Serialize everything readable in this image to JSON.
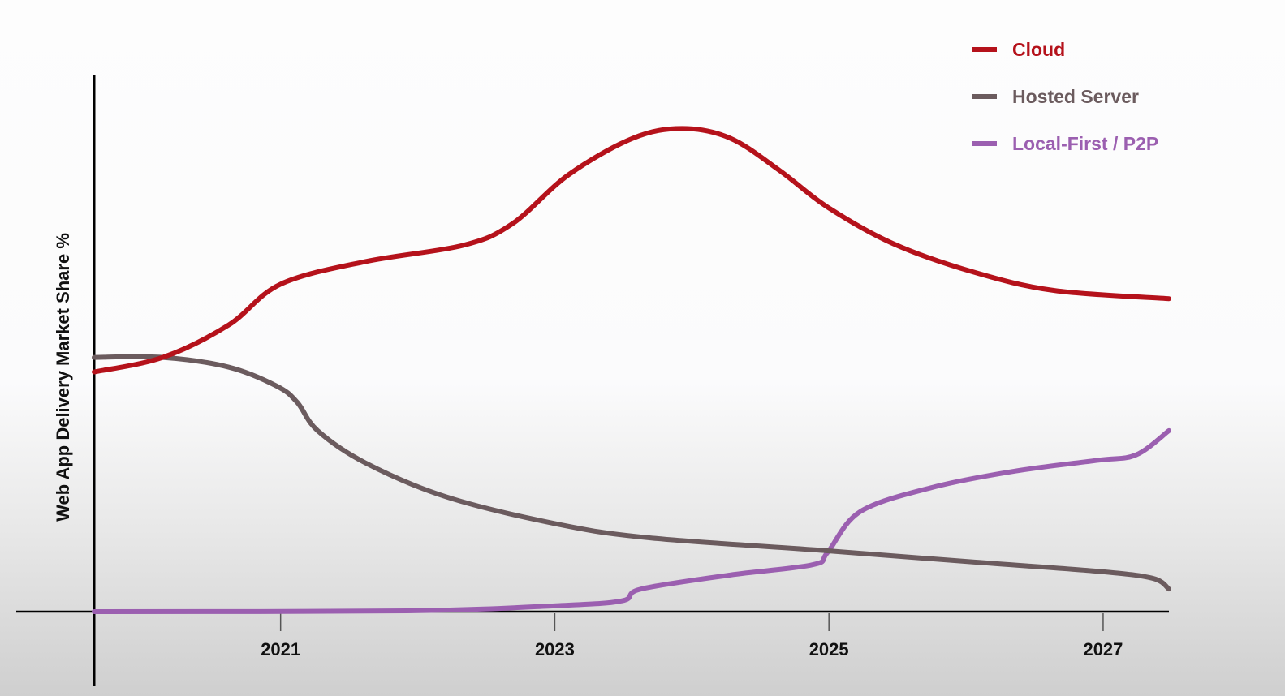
{
  "chart_data": {
    "type": "line",
    "title": "",
    "xlabel": "",
    "ylabel": "Web App Delivery Market Share %",
    "xlim": [
      2019.64,
      2027.48
    ],
    "ylim": [
      0,
      100
    ],
    "xticks": [
      "2021",
      "2023",
      "2025",
      "2027"
    ],
    "xtick_values": [
      2021,
      2023,
      2025,
      2027
    ],
    "grid": false,
    "legend_position": "top-right",
    "series": [
      {
        "name": "Cloud",
        "color": "#b5121b",
        "x": [
          2019.64,
          2020.14,
          2020.62,
          2021.0,
          2021.62,
          2022.33,
          2022.69,
          2023.1,
          2023.57,
          2023.93,
          2024.28,
          2024.64,
          2024.99,
          2025.47,
          2026.06,
          2026.65,
          2027.48
        ],
        "y": [
          44.5,
          47.2,
          53.2,
          60.8,
          65,
          68,
          72,
          81.1,
          87.9,
          89.7,
          87.9,
          81.9,
          75.1,
          68.3,
          63,
          59.6,
          58.1
        ]
      },
      {
        "name": "Hosted Server",
        "color": "#6b5b5e",
        "x": [
          2019.64,
          2020.14,
          2020.62,
          2020.97,
          2021.12,
          2021.27,
          2021.62,
          2022.21,
          2023.01,
          2023.69,
          2024.99,
          2026.06,
          2026.96,
          2027.36,
          2027.48
        ],
        "y": [
          47.2,
          47.2,
          45.4,
          41.9,
          38.9,
          33.6,
          27.6,
          21.3,
          16.3,
          13.7,
          11.3,
          9.2,
          7.5,
          6.2,
          4.2
        ]
      },
      {
        "name": "Local-First / P2P",
        "color": "#9b5fb0",
        "x": [
          2019.64,
          2021.92,
          2023.01,
          2023.49,
          2023.63,
          2024.28,
          2024.88,
          2024.99,
          2025.23,
          2025.76,
          2026.36,
          2026.96,
          2027.24,
          2027.48
        ],
        "y": [
          0,
          0.15,
          1.1,
          2.0,
          4.2,
          6.8,
          8.7,
          11.0,
          18.6,
          23.1,
          26.1,
          28.1,
          29.1,
          33.6
        ]
      }
    ]
  }
}
